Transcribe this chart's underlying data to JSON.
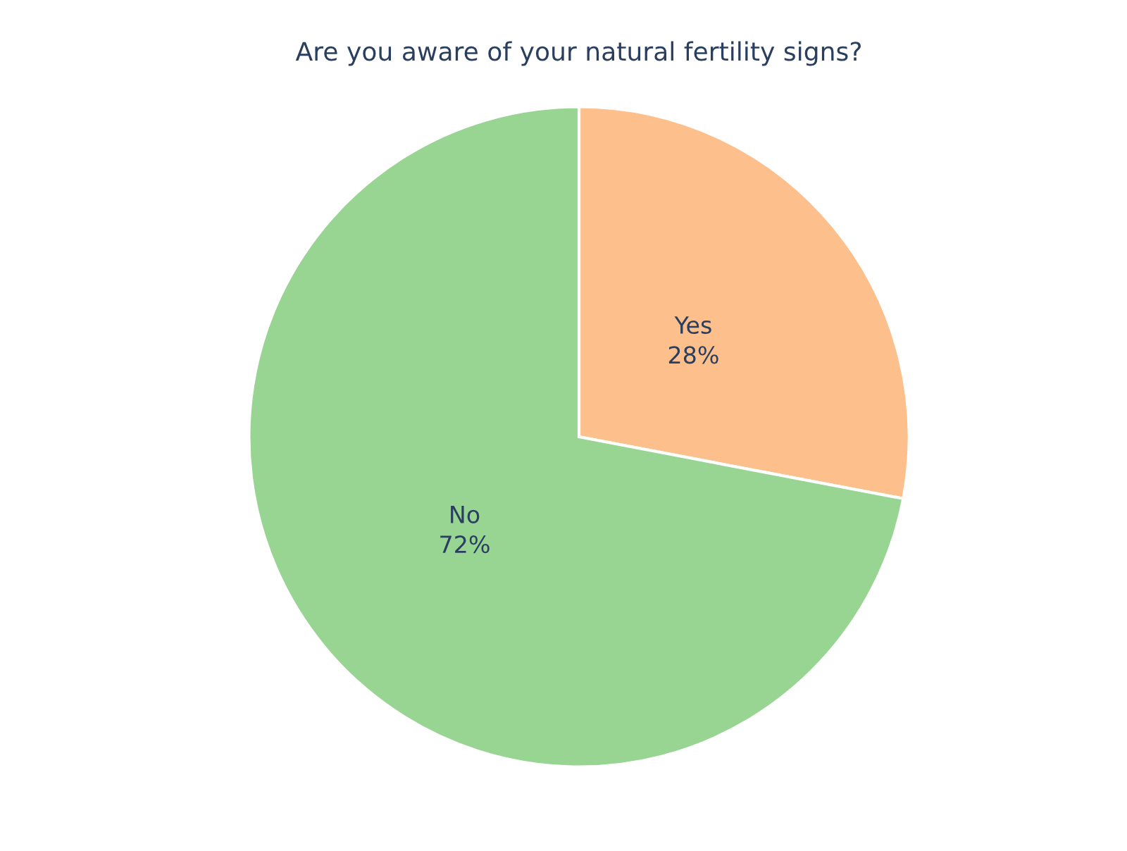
{
  "chart_data": {
    "type": "pie",
    "title": "Are you aware of your natural fertility signs?",
    "categories": [
      "Yes",
      "No"
    ],
    "values": [
      28,
      72
    ],
    "colors": [
      "#fdbf8b",
      "#98d492"
    ],
    "value_labels": [
      "28%",
      "72%"
    ]
  }
}
